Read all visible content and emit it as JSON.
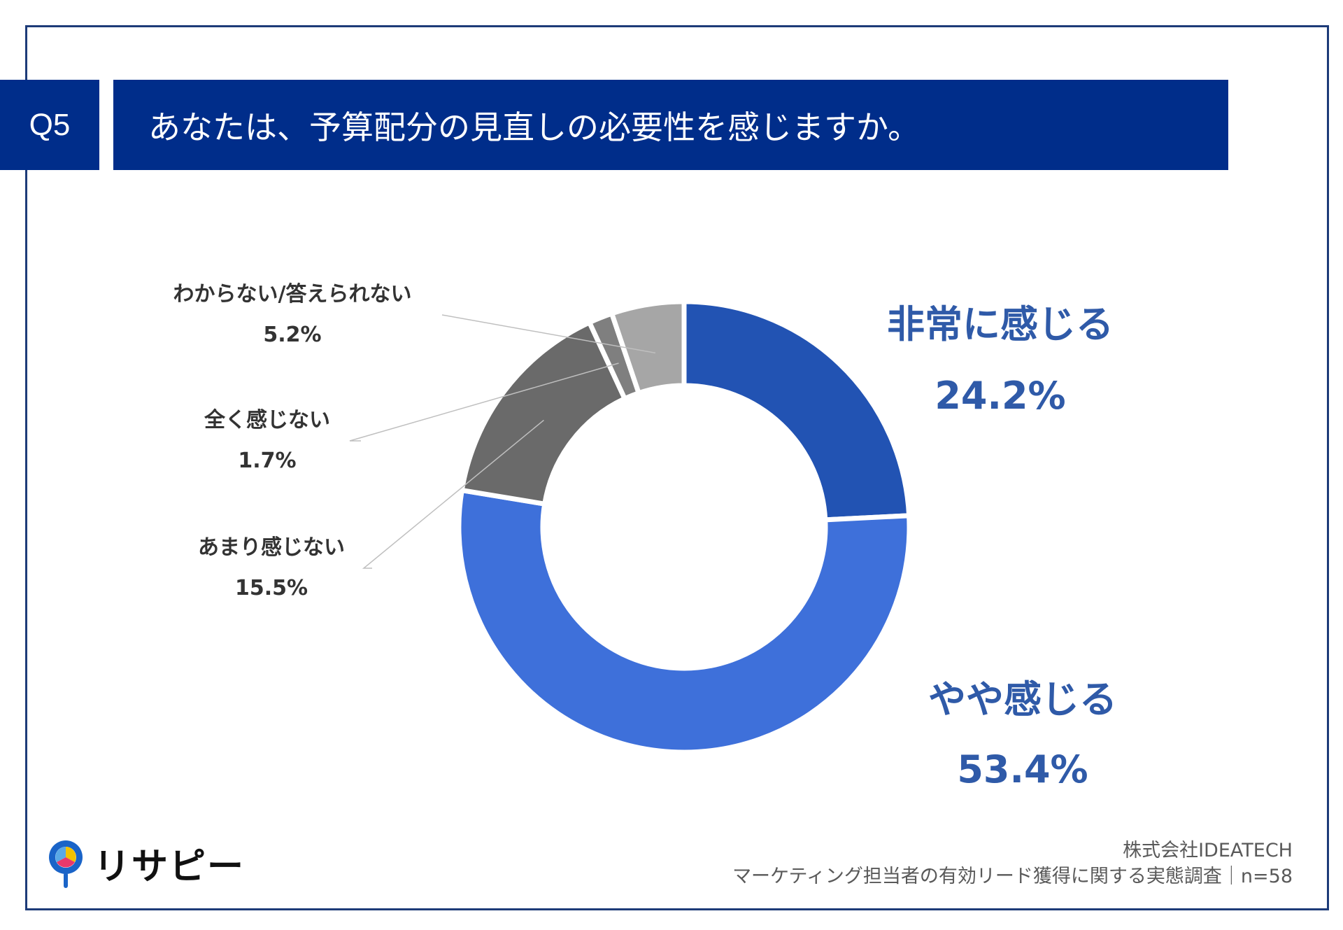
{
  "header": {
    "question_no": "Q5",
    "question_text": "あなたは、予算配分の見直しの必要性を感じますか。"
  },
  "chart_data": {
    "type": "pie",
    "variant": "donut",
    "categories": [
      "非常に感じる",
      "やや感じる",
      "あまり感じない",
      "全く感じない",
      "わからない/答えられない"
    ],
    "values": [
      24.2,
      53.4,
      15.5,
      1.7,
      5.2
    ],
    "value_labels": [
      "24.2%",
      "53.4%",
      "15.5%",
      "1.7%",
      "5.2%"
    ],
    "colors": [
      "#2253b3",
      "#3e70da",
      "#6a6a6a",
      "#7f7f7f",
      "#a6a6a6"
    ],
    "label_colors": [
      "#2f5aa8",
      "#2f5aa8",
      "#333333",
      "#333333",
      "#333333"
    ]
  },
  "footer": {
    "company": "株式会社IDEATECH",
    "survey": "マーケティング担当者の有効リード獲得に関する実態調査｜n=58"
  },
  "logo": {
    "text": "リサピー"
  }
}
